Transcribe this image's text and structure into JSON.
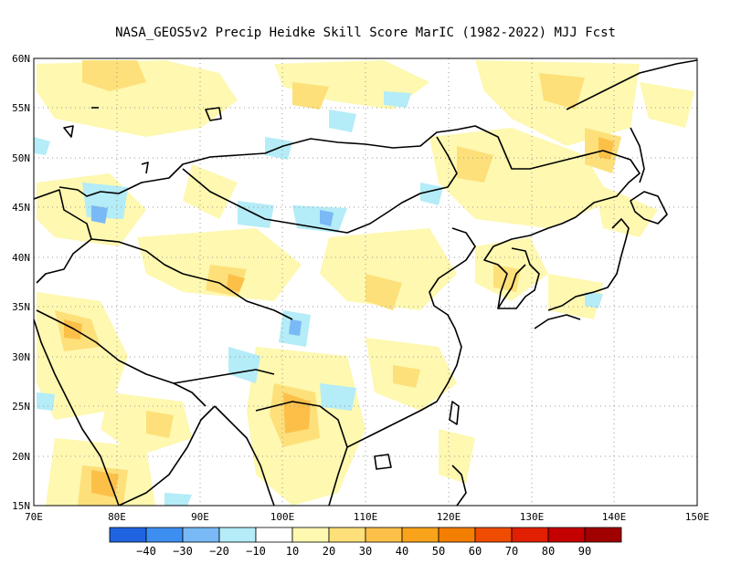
{
  "title": "NASA_GEOS5v2 Precip Heidke Skill Score MarIC (1982-2022) MJJ Fcst",
  "map": {
    "lon_range": [
      70,
      150
    ],
    "lat_range": [
      15,
      60
    ],
    "lon_ticks": [
      "70E",
      "80E",
      "90E",
      "100E",
      "110E",
      "120E",
      "130E",
      "140E",
      "150E"
    ],
    "lat_ticks": [
      "15N",
      "20N",
      "25N",
      "30N",
      "35N",
      "40N",
      "45N",
      "50N",
      "55N",
      "60N"
    ],
    "grid": "dotted",
    "land_outline_color": "#000000"
  },
  "colorbar": {
    "colors": [
      "#1f63e0",
      "#3c8ff0",
      "#79b9f5",
      "#b4ecf7",
      "#ffffff",
      "#fef8b0",
      "#fde07a",
      "#fcc049",
      "#f9a31b",
      "#f37e00",
      "#ef4c00",
      "#e02000",
      "#c40000",
      "#a00000"
    ],
    "labels": [
      "−40",
      "−30",
      "−20",
      "−10",
      "10",
      "20",
      "30",
      "40",
      "50",
      "60",
      "70",
      "80",
      "90"
    ]
  }
}
